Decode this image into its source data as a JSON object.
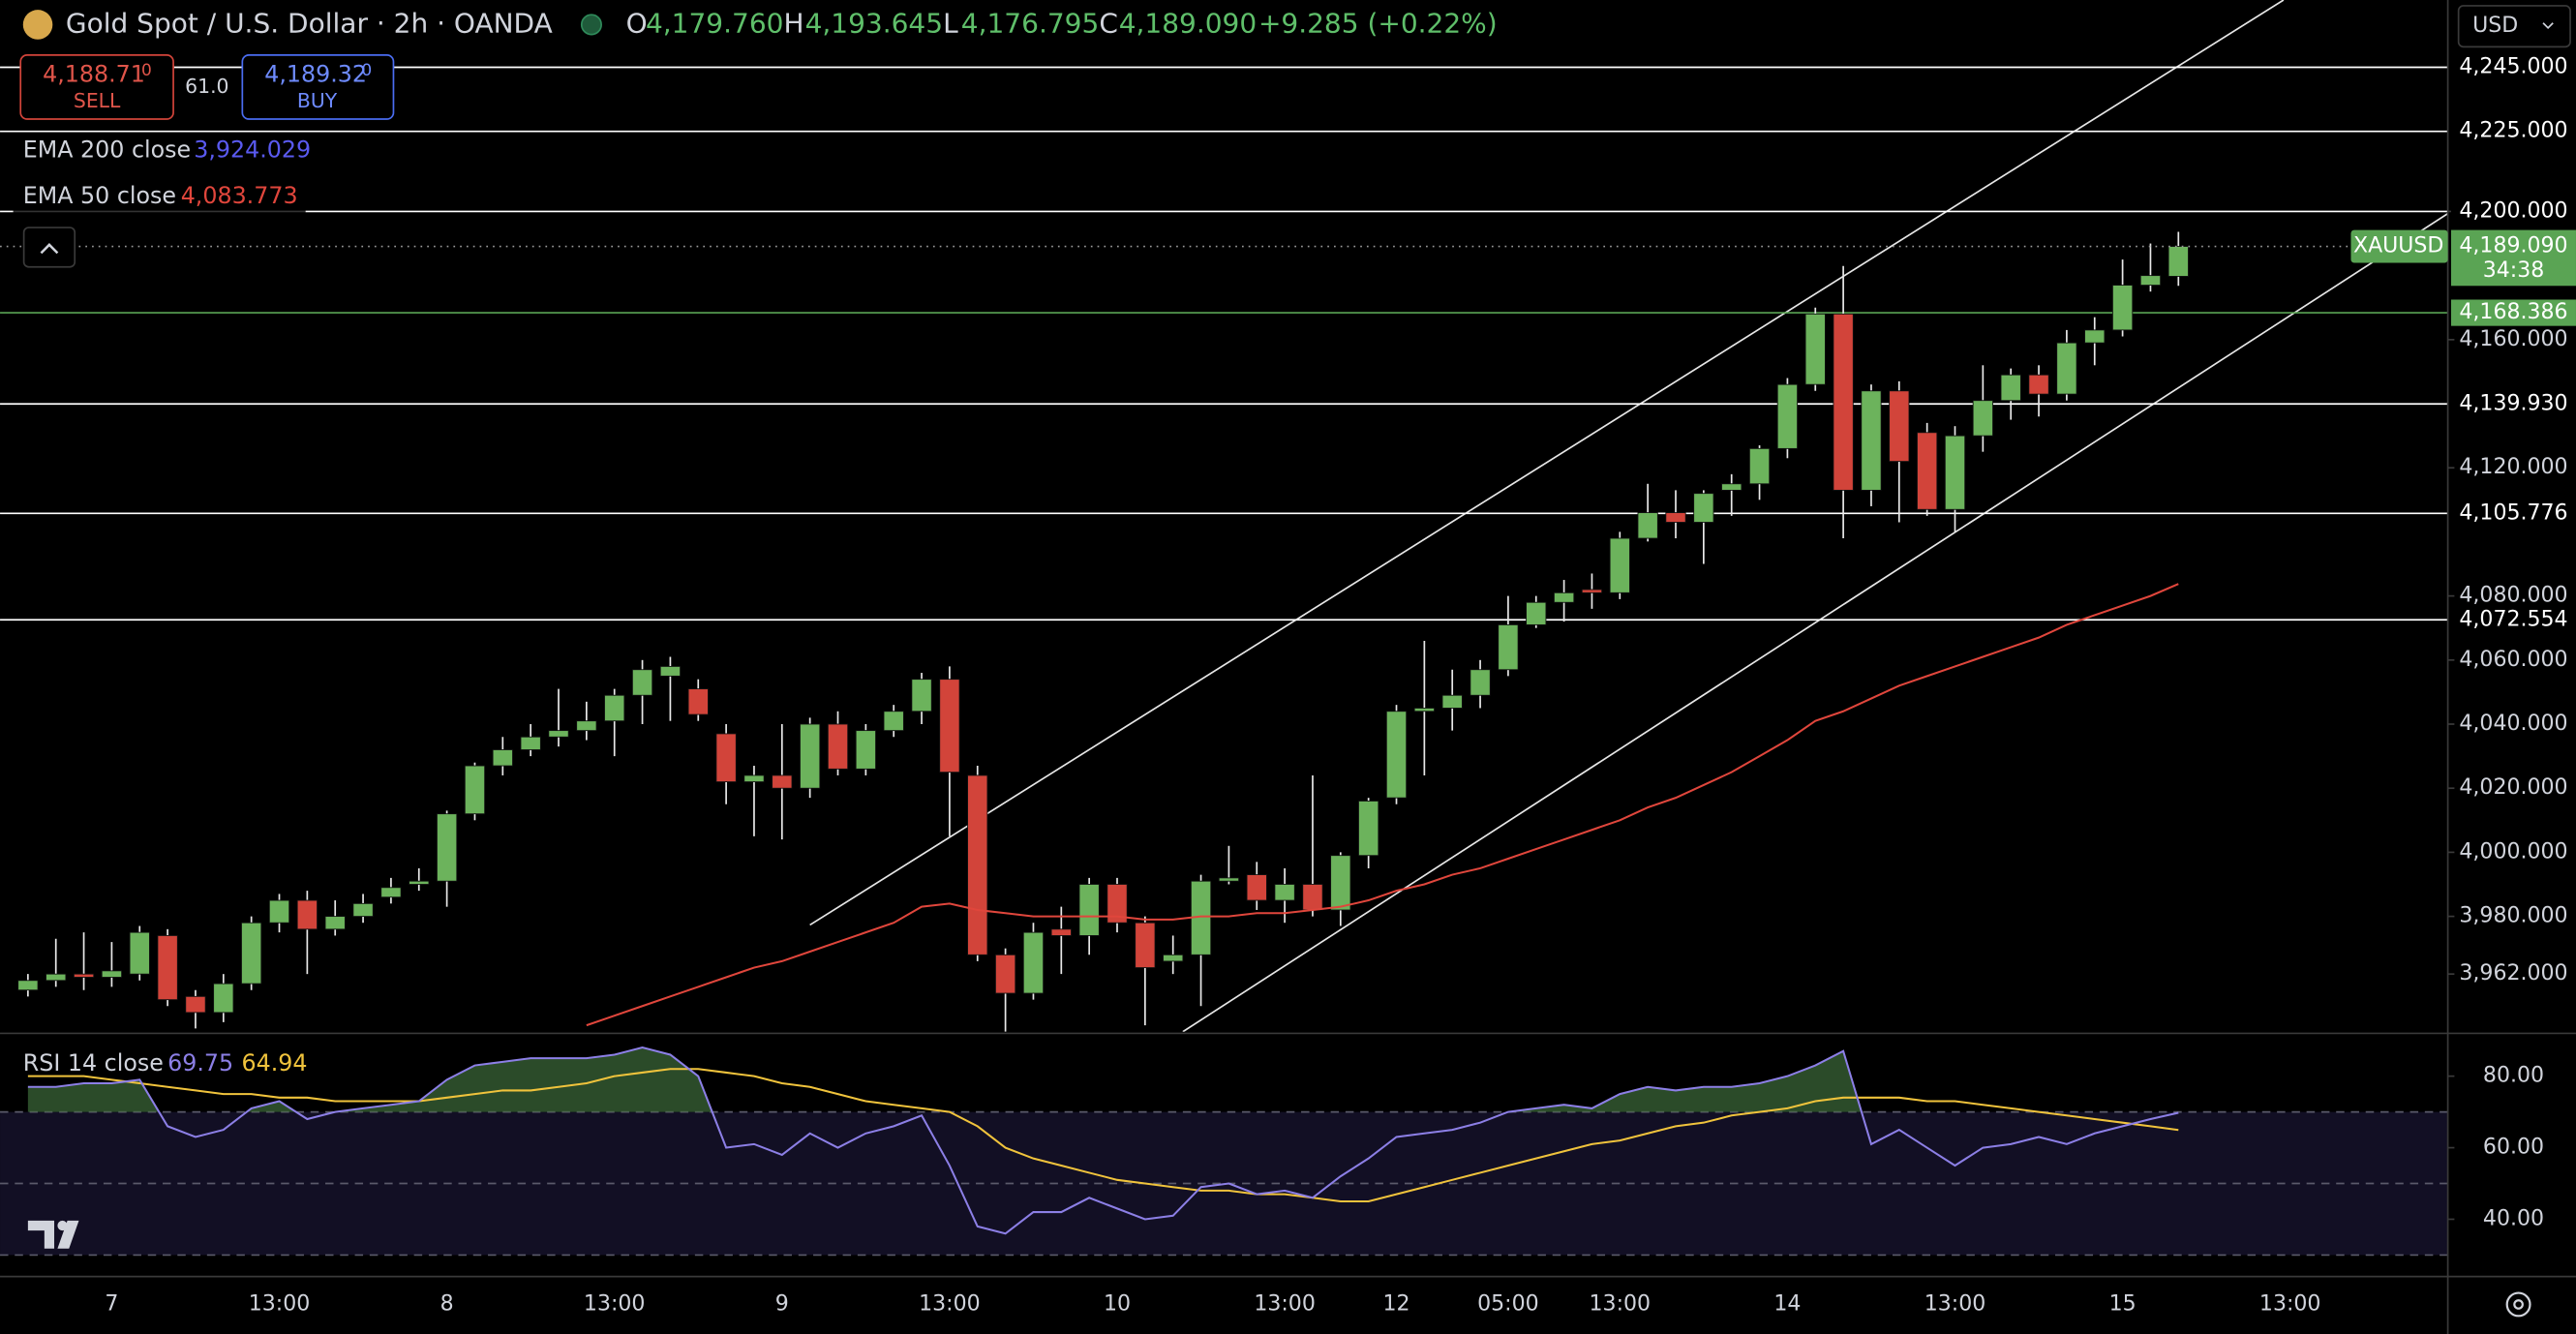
{
  "header": {
    "title": "Gold Spot / U.S. Dollar · 2h · OANDA",
    "ohlc": [
      {
        "key": "O",
        "value": "4,179.760"
      },
      {
        "key": "H",
        "value": "4,193.645"
      },
      {
        "key": "L",
        "value": "4,176.795"
      },
      {
        "key": "C",
        "value": "4,189.090"
      }
    ],
    "change": "+9.285 (+0.22%)",
    "currency": "USD"
  },
  "trade": {
    "sell_price": "4,188.71",
    "sell_sup": "0",
    "sell": "SELL",
    "spread": "61.0",
    "buy_price": "4,189.32",
    "buy_sup": "0",
    "buy": "BUY"
  },
  "legend": {
    "ema200_name": "EMA 200 close",
    "ema200_value": "3,924.029",
    "ema50_value": "4,083.773",
    "rsi_values": [
      "69.75",
      "64.94"
    ]
  },
  "chart_data": [
    {
      "type": "candlestick",
      "up_color": "#6cb35c",
      "down_color": "#d2443a",
      "categories": [
        null,
        null,
        null,
        "7",
        null,
        null,
        null,
        null,
        null,
        "13:00",
        null,
        null,
        null,
        null,
        null,
        "8",
        null,
        null,
        null,
        null,
        null,
        "13:00",
        null,
        null,
        null,
        null,
        null,
        "9",
        null,
        null,
        null,
        null,
        null,
        "13:00",
        null,
        null,
        null,
        null,
        null,
        "10",
        null,
        null,
        null,
        null,
        null,
        "13:00",
        null,
        null,
        null,
        "12",
        null,
        null,
        null,
        "05:00",
        null,
        null,
        null,
        "13:00",
        null,
        null,
        null,
        null,
        null,
        "14",
        null,
        null,
        null,
        null,
        null,
        "13:00",
        null,
        null,
        null,
        null,
        null,
        "15",
        null,
        null,
        null,
        null,
        null,
        "13:00"
      ],
      "open": [
        3957,
        3960,
        3962,
        3961,
        3962,
        3974,
        3955,
        3950,
        3959,
        3978,
        3985,
        3976,
        3980,
        3986,
        3990,
        3991,
        4012,
        4027,
        4032,
        4036,
        4038,
        4041,
        4049,
        4055,
        4051,
        4037,
        4022,
        4024,
        4020,
        4040,
        4026,
        4038,
        4044,
        4054,
        4024,
        3968,
        3956,
        3976,
        3974,
        3990,
        3978,
        3966,
        3968,
        3991,
        3993,
        3985,
        3990,
        3982,
        3999,
        4017,
        4044,
        4045,
        4049,
        4057,
        4071,
        4078,
        4082,
        4081,
        4098,
        4106,
        4103,
        4113,
        4115,
        4126,
        4146,
        4168,
        4113,
        4144,
        4131,
        4107,
        4130,
        4141,
        4149,
        4143,
        4159,
        4163,
        4177,
        4179.76,
        null,
        null,
        null,
        null
      ],
      "high": [
        3962,
        3973,
        3975,
        3972,
        3977,
        3976,
        3957,
        3962,
        3980,
        3987,
        3988,
        3985,
        3987,
        3992,
        3995,
        4013,
        4028,
        4036,
        4040,
        4051,
        4047,
        4051,
        4060,
        4061,
        4054,
        4040,
        4027,
        4040,
        4042,
        4044,
        4040,
        4046,
        4056,
        4058,
        4027,
        3970,
        3978,
        3983,
        3992,
        3992,
        3980,
        3974,
        3993,
        4002,
        3997,
        3995,
        4024,
        4000,
        4017,
        4046,
        4066,
        4057,
        4060,
        4080,
        4080,
        4085,
        4087,
        4100,
        4115,
        4113,
        4113,
        4118,
        4127,
        4148,
        4170,
        4183,
        4146,
        4147,
        4134,
        4133,
        4152,
        4151,
        4152,
        4163,
        4167,
        4185,
        4190,
        4193.645,
        null,
        null,
        null,
        null
      ],
      "low": [
        3955,
        3958,
        3957,
        3958,
        3960,
        3952,
        3945,
        3947,
        3957,
        3975,
        3962,
        3974,
        3978,
        3984,
        3988,
        3983,
        4010,
        4024,
        4030,
        4033,
        4035,
        4030,
        4040,
        4041,
        4041,
        4015,
        4005,
        4004,
        4017,
        4024,
        4024,
        4036,
        4040,
        4005,
        3966,
        3944,
        3954,
        3962,
        3968,
        3975,
        3946,
        3962,
        3952,
        3990,
        3982,
        3978,
        3980,
        3977,
        3995,
        4015,
        4024,
        4038,
        4045,
        4055,
        4070,
        4072,
        4076,
        4079,
        4097,
        4098,
        4090,
        4105,
        4110,
        4123,
        4144,
        4098,
        4108,
        4103,
        4105,
        4100,
        4125,
        4135,
        4136,
        4141,
        4152,
        4161,
        4175,
        4176.795,
        null,
        null,
        null,
        null
      ],
      "close": [
        3960,
        3962,
        3961,
        3963,
        3975,
        3954,
        3950,
        3959,
        3978,
        3985,
        3976,
        3980,
        3984,
        3989,
        3991,
        4012,
        4027,
        4032,
        4036,
        4038,
        4041,
        4049,
        4057,
        4058,
        4043,
        4022,
        4024,
        4020,
        4040,
        4026,
        4038,
        4044,
        4054,
        4025,
        3968,
        3956,
        3975,
        3974,
        3990,
        3978,
        3964,
        3968,
        3991,
        3992,
        3985,
        3990,
        3982,
        3999,
        4016,
        4044,
        4045,
        4049,
        4057,
        4071,
        4078,
        4081,
        4081,
        4098,
        4106,
        4103,
        4112,
        4115,
        4126,
        4146,
        4168,
        4113,
        4144,
        4122,
        4107,
        4130,
        4141,
        4149,
        4143,
        4159,
        4163,
        4177,
        4180,
        4189.09,
        null,
        null,
        null,
        null
      ],
      "series": [
        {
          "name": "EMA 50 close",
          "color": "#e0463c",
          "values": [
            null,
            null,
            null,
            null,
            null,
            null,
            null,
            null,
            null,
            null,
            null,
            null,
            null,
            null,
            null,
            null,
            null,
            null,
            null,
            null,
            3946,
            3949,
            3952,
            3955,
            3958,
            3961,
            3964,
            3966,
            3969,
            3972,
            3975,
            3978,
            3983,
            3984,
            3982,
            3981,
            3980,
            3980,
            3980,
            3980,
            3979,
            3979,
            3980,
            3980,
            3981,
            3981,
            3982,
            3983,
            3985,
            3988,
            3990,
            3993,
            3995,
            3998,
            4001,
            4004,
            4007,
            4010,
            4014,
            4017,
            4021,
            4025,
            4030,
            4035,
            4041,
            4044,
            4048,
            4052,
            4055,
            4058,
            4061,
            4064,
            4067,
            4071,
            4074,
            4077,
            4080,
            4083.773,
            null,
            null,
            null,
            null
          ]
        }
      ],
      "ylim": [
        3944,
        4266
      ],
      "yticks": [
        {
          "value": 3962,
          "label": "3,962.000"
        },
        {
          "value": 3980,
          "label": "3,980.000"
        },
        {
          "value": 4000,
          "label": "4,000.000"
        },
        {
          "value": 4020,
          "label": "4,020.000"
        },
        {
          "value": 4040,
          "label": "4,040.000"
        },
        {
          "value": 4060,
          "label": "4,060.000"
        },
        {
          "value": 4080,
          "label": "4,080.000"
        },
        {
          "value": 4120,
          "label": "4,120.000"
        },
        {
          "value": 4160,
          "label": "4,160.000"
        },
        {
          "value": 4200,
          "label": "4,200.000"
        }
      ],
      "levels": [
        {
          "value": 4245,
          "label": "4,245.000",
          "color": "#ffffff"
        },
        {
          "value": 4225,
          "label": "4,225.000",
          "color": "#ffffff"
        },
        {
          "value": 4200,
          "label": "4,200.000",
          "color": "#ffffff"
        },
        {
          "value": 4168.386,
          "label": "4,168.386",
          "color": "#5aa454"
        },
        {
          "value": 4139.93,
          "label": "4,139.930",
          "color": "#ffffff"
        },
        {
          "value": 4105.776,
          "label": "4,105.776",
          "color": "#ffffff"
        },
        {
          "value": 4072.554,
          "label": "4,072.554",
          "color": "#ffffff"
        }
      ],
      "last_price": {
        "symbol": "XAUUSD",
        "value": 4189.09,
        "label": "4,189.090",
        "countdown": "34:38",
        "color": "#5aa454"
      }
    },
    {
      "type": "line",
      "title": "RSI 14 close",
      "series": [
        {
          "color": "#8c7fe6",
          "values": [
            77,
            77,
            78,
            78,
            79,
            66,
            63,
            65,
            71,
            73,
            68,
            70,
            71,
            72,
            73,
            79,
            83,
            84,
            85,
            85,
            85,
            86,
            88,
            86,
            80,
            60,
            61,
            58,
            64,
            60,
            64,
            66,
            69,
            55,
            38,
            36,
            42,
            42,
            46,
            43,
            40,
            41,
            49,
            50,
            47,
            48,
            46,
            52,
            57,
            63,
            64,
            65,
            67,
            70,
            71,
            72,
            71,
            75,
            77,
            76,
            77,
            77,
            78,
            80,
            83,
            87,
            61,
            65,
            60,
            55,
            60,
            61,
            63,
            61,
            64,
            66,
            68,
            69.75,
            null,
            null,
            null,
            null
          ]
        },
        {
          "color": "#f0c33c",
          "values": [
            80,
            80,
            80,
            79,
            78,
            77,
            76,
            75,
            75,
            74,
            74,
            73,
            73,
            73,
            73,
            74,
            75,
            76,
            76,
            77,
            78,
            80,
            81,
            82,
            82,
            81,
            80,
            78,
            77,
            75,
            73,
            72,
            71,
            70,
            66,
            60,
            57,
            55,
            53,
            51,
            50,
            49,
            48,
            48,
            47,
            47,
            46,
            45,
            45,
            47,
            49,
            51,
            53,
            55,
            57,
            59,
            61,
            62,
            64,
            66,
            67,
            69,
            70,
            71,
            73,
            74,
            74,
            74,
            73,
            73,
            72,
            71,
            70,
            69,
            68,
            67,
            66,
            64.94,
            null,
            null,
            null,
            null
          ]
        }
      ],
      "ylim": [
        24,
        91.5
      ],
      "yticks": [
        {
          "value": 40,
          "label": "40.00"
        },
        {
          "value": 60,
          "label": "60.00"
        },
        {
          "value": 80,
          "label": "80.00"
        }
      ],
      "bands": [
        70,
        50,
        30
      ],
      "fill_color": "#3d6b3a"
    }
  ]
}
